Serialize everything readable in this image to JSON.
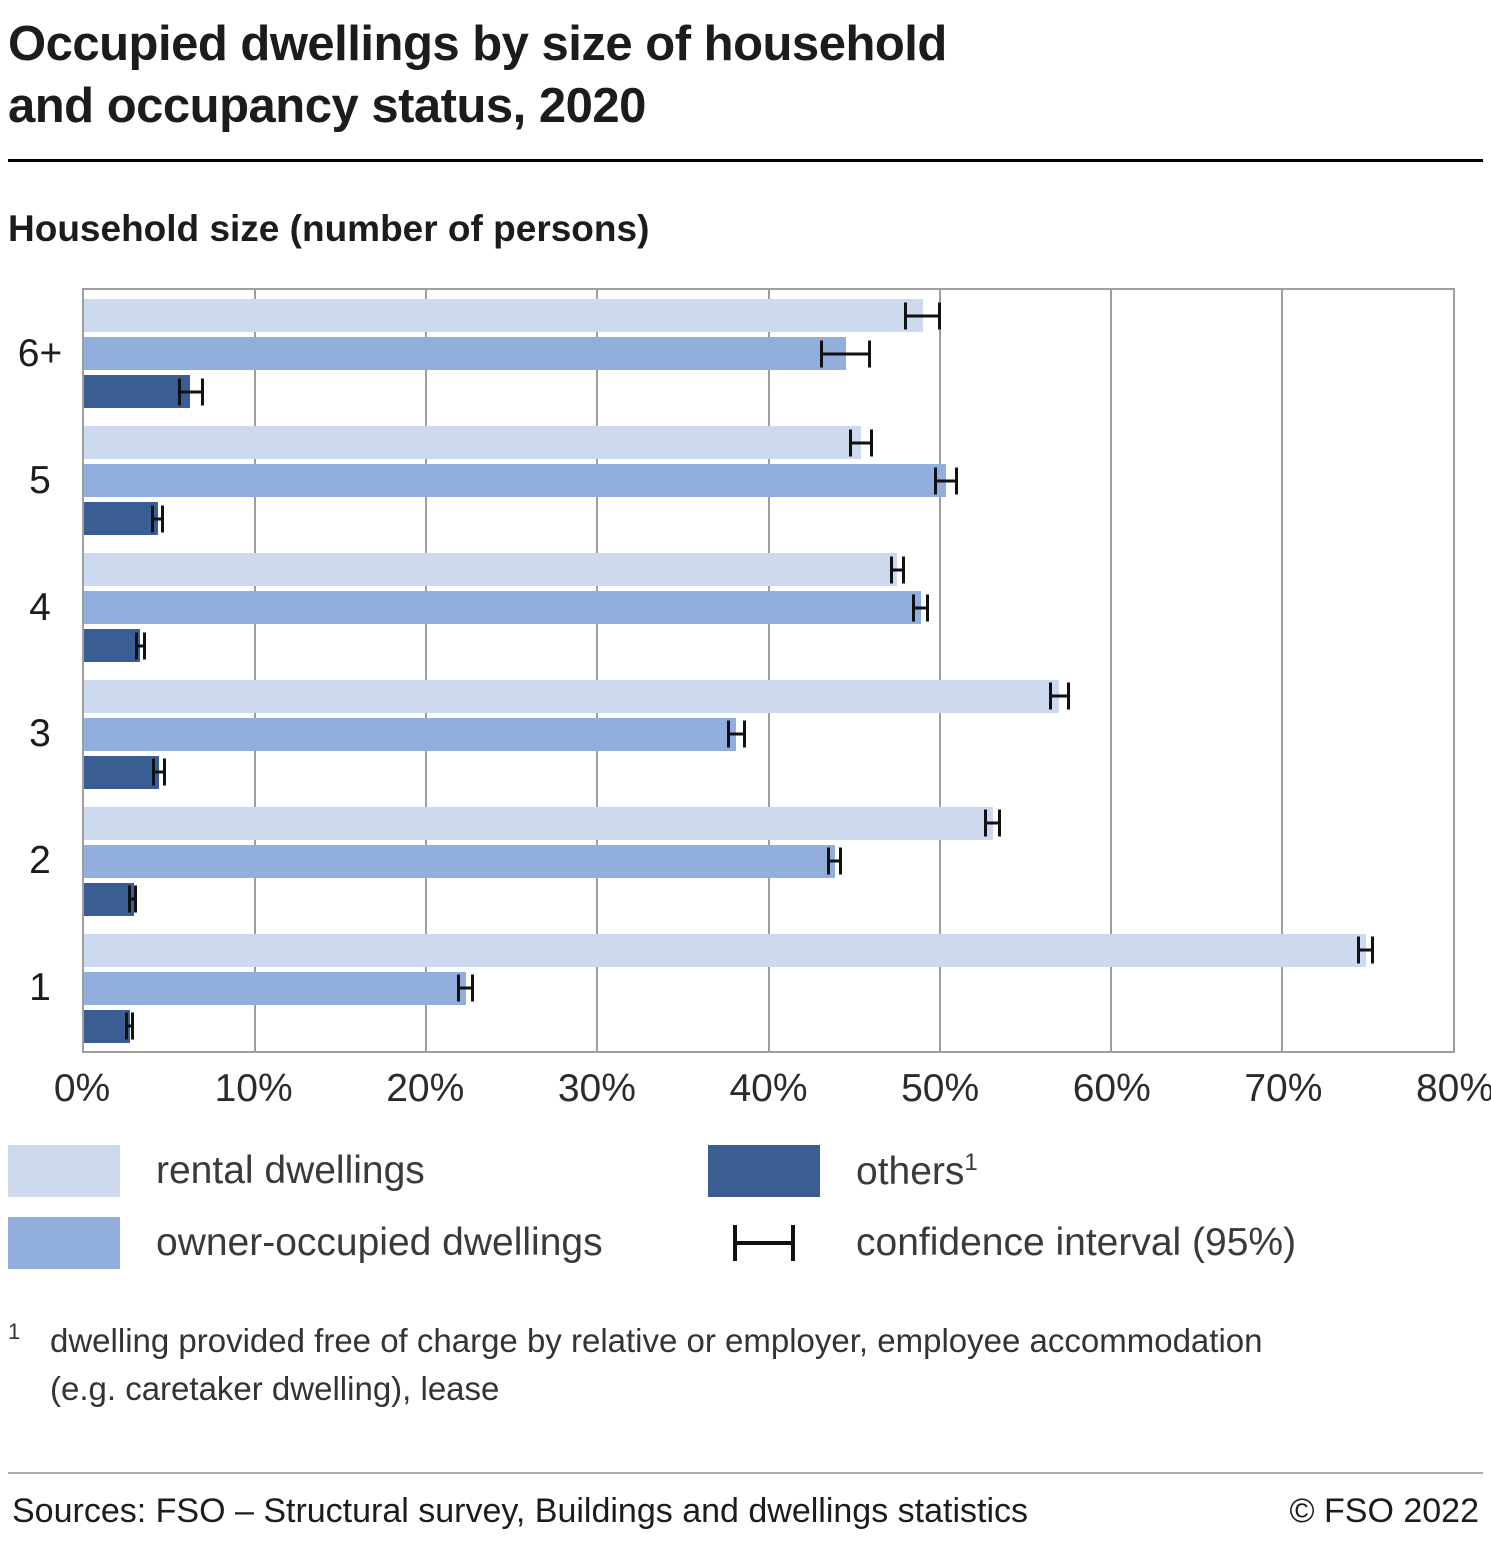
{
  "header": {
    "title_line1": "Occupied dwellings by size of household",
    "title_line2": "and occupancy status, 2020",
    "axis_title": "Household size (number of persons)"
  },
  "legend": {
    "rental": "rental dwellings",
    "owner": "owner-occupied dwellings",
    "others": "others",
    "others_sup": "1",
    "ci": "confidence interval (95%)"
  },
  "footnote": {
    "marker": "1",
    "line1": "dwelling provided free of charge by relative or employer, employee accommodation",
    "line2": "(e.g. caretaker dwelling), lease"
  },
  "footer": {
    "sources": "Sources: FSO – Structural survey, Buildings and dwellings statistics",
    "copyright": "© FSO 2022"
  },
  "chart_data": {
    "type": "bar",
    "orientation": "horizontal",
    "title": "Occupied dwellings by size of household and occupancy status, 2020",
    "ylabel": "Household size (number of persons)",
    "categories": [
      "6+",
      "5",
      "4",
      "3",
      "2",
      "1"
    ],
    "xlim": [
      0,
      80
    ],
    "grid_step": 10,
    "grid": true,
    "x_tick_labels": [
      "0%",
      "10%",
      "20%",
      "30%",
      "40%",
      "50%",
      "60%",
      "70%",
      "80%"
    ],
    "error_bars": "confidence interval (95%)",
    "legend_position": "bottom",
    "series": [
      {
        "key": "rental",
        "name": "rental dwellings",
        "color": "#cdd9ee",
        "values": [
          49.0,
          45.4,
          47.5,
          57.0,
          53.1,
          74.9
        ],
        "ci_low": [
          47.9,
          44.7,
          47.1,
          56.4,
          52.6,
          74.4
        ],
        "ci_high": [
          50.1,
          46.1,
          48.0,
          57.6,
          53.6,
          75.4
        ]
      },
      {
        "key": "owner",
        "name": "owner-occupied dwellings",
        "color": "#92aedd",
        "values": [
          44.5,
          50.4,
          48.9,
          38.1,
          43.9,
          22.3
        ],
        "ci_low": [
          43.0,
          49.7,
          48.4,
          37.6,
          43.4,
          21.8
        ],
        "ci_high": [
          46.0,
          51.1,
          49.4,
          38.7,
          44.3,
          22.8
        ]
      },
      {
        "key": "others",
        "name": "others",
        "color": "#3a5e94",
        "values": [
          6.2,
          4.3,
          3.3,
          4.4,
          2.9,
          2.7
        ],
        "ci_low": [
          5.5,
          3.9,
          3.0,
          4.0,
          2.6,
          2.4
        ],
        "ci_high": [
          7.0,
          4.7,
          3.6,
          4.8,
          3.1,
          2.9
        ]
      }
    ]
  }
}
